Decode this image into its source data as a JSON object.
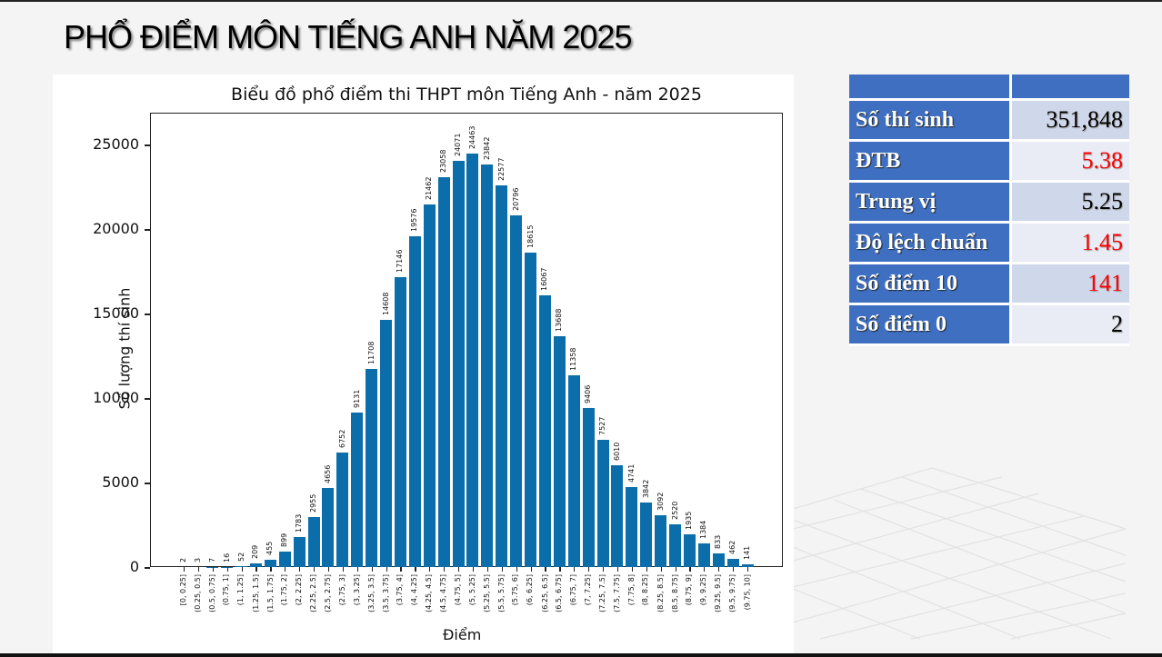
{
  "slide": {
    "title": "PHỔ ĐIỂM MÔN TIẾNG ANH NĂM 2025"
  },
  "chart_data": {
    "type": "bar",
    "title": "Biểu đồ phổ điểm thi THPT môn Tiếng Anh - năm 2025",
    "xlabel": "Điểm",
    "ylabel": "Số lượng thí sinh",
    "ylim": [
      0,
      26900
    ],
    "yticks": [
      0,
      5000,
      10000,
      15000,
      20000,
      25000
    ],
    "grid": false,
    "bar_color": "#0b6eab",
    "categories": [
      "[0, 0.25]",
      "(0.25, 0.5]",
      "(0.5, 0.75]",
      "(0.75, 1]",
      "(1, 1.25]",
      "(1.25, 1.5]",
      "(1.5, 1.75]",
      "(1.75, 2]",
      "(2, 2.25]",
      "(2.25, 2.5]",
      "(2.5, 2.75]",
      "(2.75, 3]",
      "(3, 3.25]",
      "(3.25, 3.5]",
      "(3.5, 3.75]",
      "(3.75, 4]",
      "(4, 4.25]",
      "(4.25, 4.5]",
      "(4.5, 4.75]",
      "(4.75, 5]",
      "(5, 5.25]",
      "(5.25, 5.5]",
      "(5.5, 5.75]",
      "(5.75, 6]",
      "(6, 6.25]",
      "(6.25, 6.5]",
      "(6.5, 6.75]",
      "(6.75, 7]",
      "(7, 7.25]",
      "(7.25, 7.5]",
      "(7.5, 7.75]",
      "(7.75, 8]",
      "(8, 8.25]",
      "(8.25, 8.5]",
      "(8.5, 8.75]",
      "(8.75, 9]",
      "(9, 9.25]",
      "(9.25, 9.5]",
      "(9.5, 9.75]",
      "(9.75, 10]"
    ],
    "values": [
      2,
      3,
      7,
      16,
      52,
      209,
      455,
      899,
      1783,
      2955,
      4656,
      6752,
      9131,
      11708,
      14608,
      17146,
      19576,
      21462,
      23058,
      24071,
      24463,
      23842,
      22577,
      20796,
      18615,
      16067,
      13688,
      11358,
      9406,
      7527,
      6010,
      4741,
      3842,
      3092,
      2520,
      1935,
      1384,
      833,
      462,
      141
    ]
  },
  "stats_table": {
    "rows": [
      {
        "label": "Số thí sinh",
        "value": "351,848",
        "color": "#000000"
      },
      {
        "label": "ĐTB",
        "value": "5.38",
        "color": "#ff0000"
      },
      {
        "label": "Trung vị",
        "value": "5.25",
        "color": "#000000"
      },
      {
        "label": "Độ lệch chuẩn",
        "value": "1.45",
        "color": "#ff0000"
      },
      {
        "label": "Số điểm 10",
        "value": "141",
        "color": "#ff0000"
      },
      {
        "label": "Số điểm 0",
        "value": "2",
        "color": "#000000"
      }
    ]
  }
}
